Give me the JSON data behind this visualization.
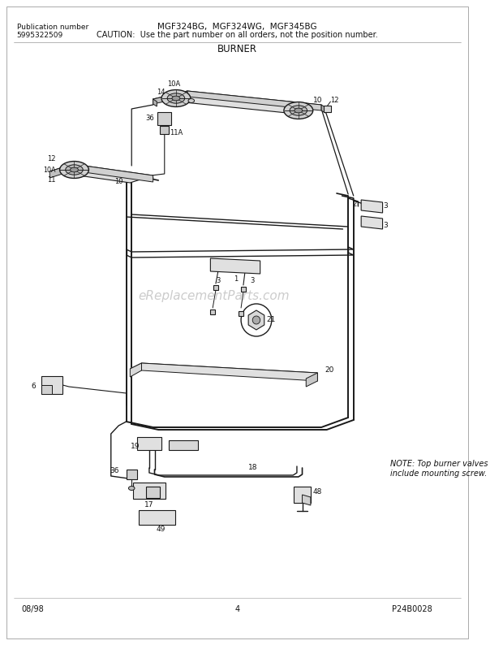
{
  "title": "BURNER",
  "header_model": "MGF324BG,  MGF324WG,  MGF345BG",
  "header_caution": "CAUTION:  Use the part number on all orders, not the position number.",
  "pub_label": "Publication number",
  "pub_number": "5995322509",
  "footer_left": "08/98",
  "footer_center": "4",
  "footer_right": "P24B0028",
  "note_text": "NOTE: Top burner valves\ninclude mounting screw.",
  "bg_color": "#ffffff",
  "line_color": "#1a1a1a",
  "watermark": "eReplacementParts.com",
  "border_color": "#888888",
  "gray_fill": "#e8e8e8",
  "dark_gray": "#555555"
}
